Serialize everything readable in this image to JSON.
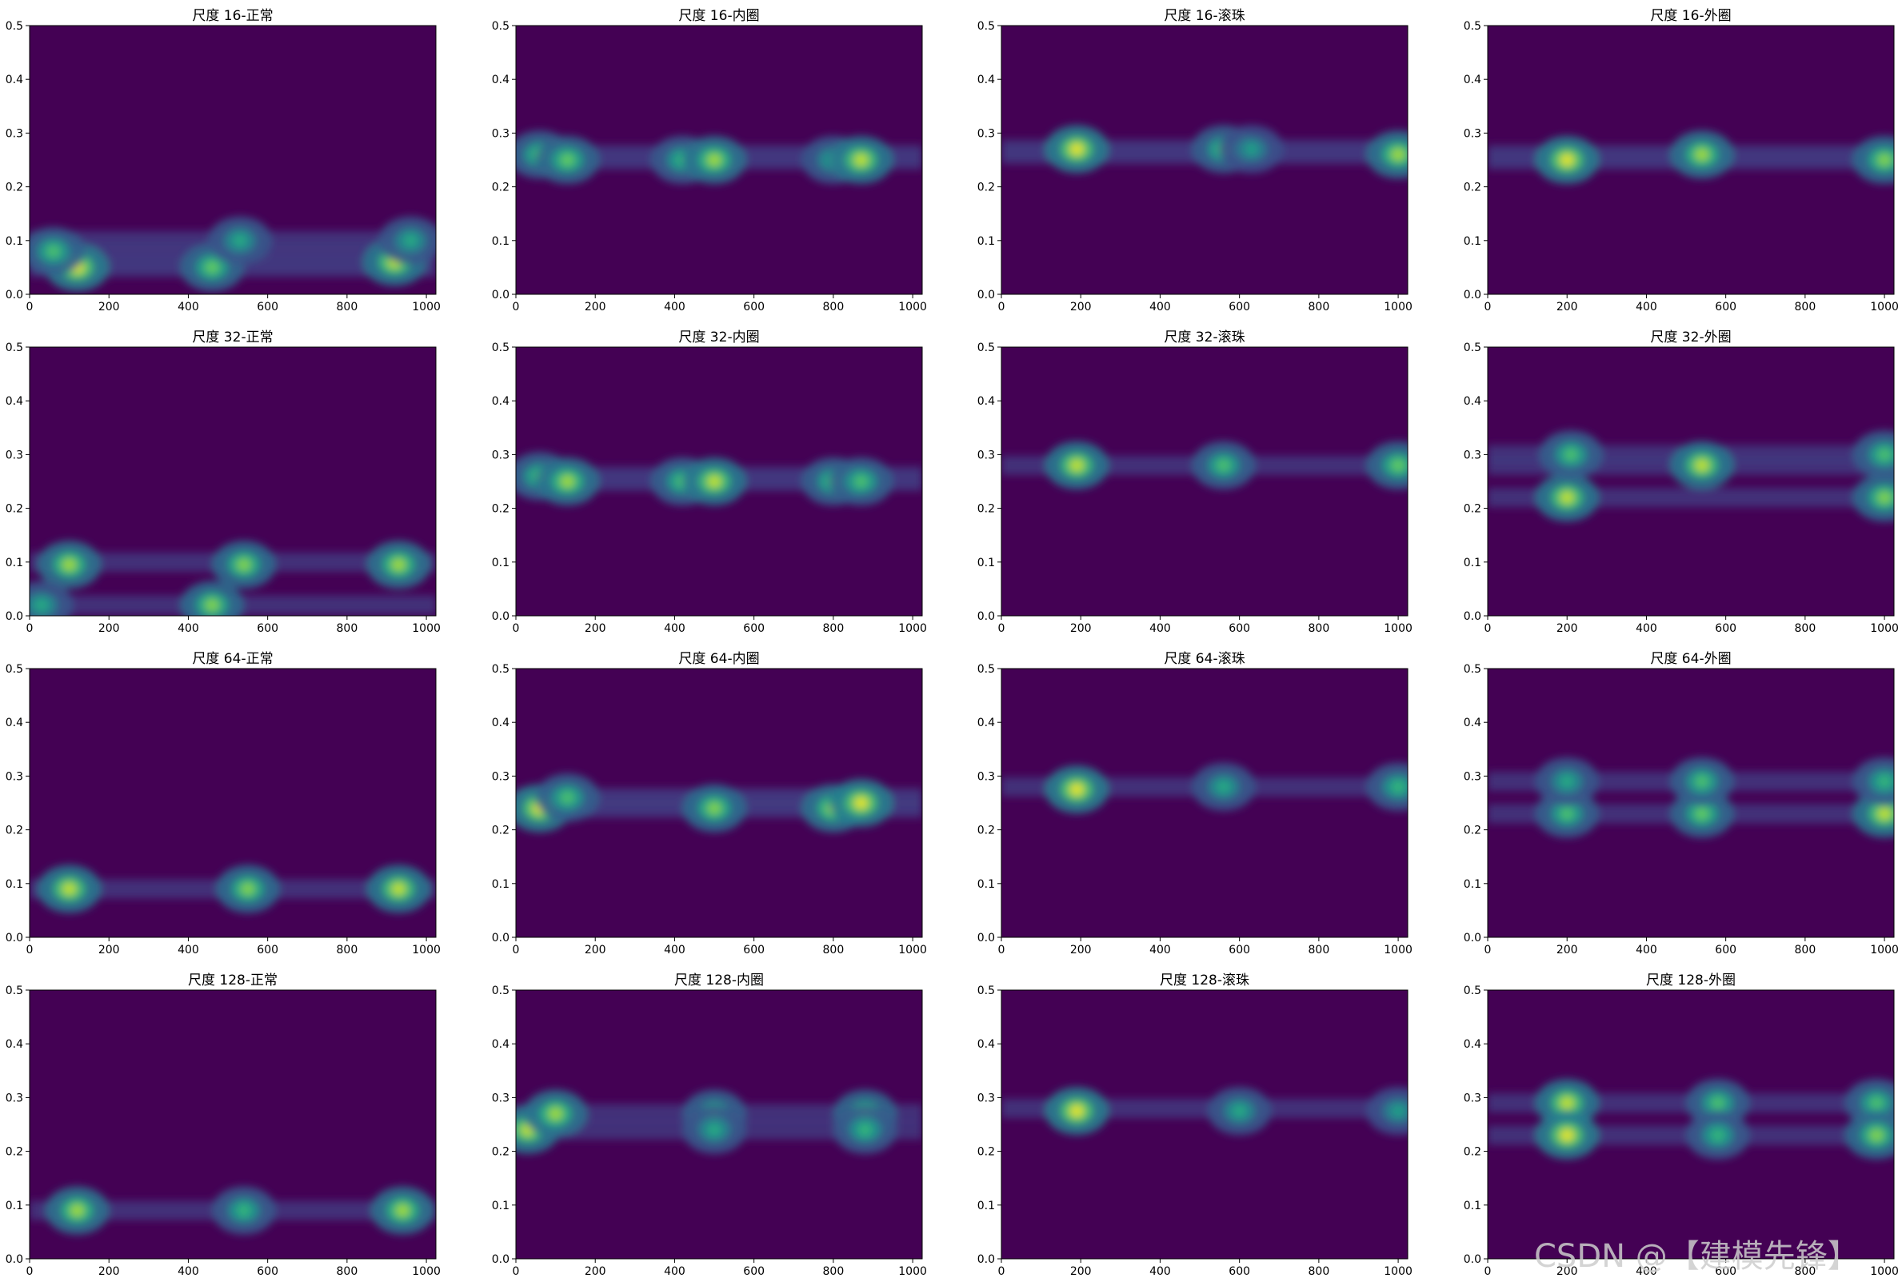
{
  "watermark": "CSDN @【建模先锋】",
  "colormap": "viridis",
  "colors": {
    "viridis_low": "#440154",
    "viridis_mid": "#21918c",
    "viridis_high": "#fde725"
  },
  "chart_data": [
    {
      "type": "heatmap",
      "title": "尺度 16-正常",
      "xlim": [
        0,
        1024
      ],
      "ylim": [
        0,
        0.5
      ],
      "xticks": [
        "0",
        "200",
        "400",
        "600",
        "800",
        "1000"
      ],
      "yticks": [
        "0.0",
        "0.1",
        "0.2",
        "0.3",
        "0.4",
        "0.5"
      ],
      "hotspots": [
        {
          "x": 120,
          "y": 0.05,
          "v": 0.95
        },
        {
          "x": 60,
          "y": 0.08,
          "v": 0.7
        },
        {
          "x": 460,
          "y": 0.05,
          "v": 0.75
        },
        {
          "x": 530,
          "y": 0.1,
          "v": 0.6
        },
        {
          "x": 920,
          "y": 0.06,
          "v": 0.9
        },
        {
          "x": 960,
          "y": 0.1,
          "v": 0.6
        }
      ]
    },
    {
      "type": "heatmap",
      "title": "尺度 16-内圈",
      "xlim": [
        0,
        1024
      ],
      "ylim": [
        0,
        0.5
      ],
      "xticks": [
        "0",
        "200",
        "400",
        "600",
        "800",
        "1000"
      ],
      "yticks": [
        "0.0",
        "0.1",
        "0.2",
        "0.3",
        "0.4",
        "0.5"
      ],
      "hotspots": [
        {
          "x": 60,
          "y": 0.26,
          "v": 0.7
        },
        {
          "x": 130,
          "y": 0.25,
          "v": 0.75
        },
        {
          "x": 420,
          "y": 0.25,
          "v": 0.65
        },
        {
          "x": 500,
          "y": 0.25,
          "v": 0.85
        },
        {
          "x": 800,
          "y": 0.25,
          "v": 0.6
        },
        {
          "x": 870,
          "y": 0.25,
          "v": 0.9
        }
      ]
    },
    {
      "type": "heatmap",
      "title": "尺度 16-滚珠",
      "xlim": [
        0,
        1024
      ],
      "ylim": [
        0,
        0.5
      ],
      "xticks": [
        "0",
        "200",
        "400",
        "600",
        "800",
        "1000"
      ],
      "yticks": [
        "0.0",
        "0.1",
        "0.2",
        "0.3",
        "0.4",
        "0.5"
      ],
      "hotspots": [
        {
          "x": 190,
          "y": 0.27,
          "v": 0.95
        },
        {
          "x": 560,
          "y": 0.27,
          "v": 0.7
        },
        {
          "x": 630,
          "y": 0.27,
          "v": 0.55
        },
        {
          "x": 1000,
          "y": 0.26,
          "v": 0.85
        }
      ]
    },
    {
      "type": "heatmap",
      "title": "尺度 16-外圈",
      "xlim": [
        0,
        1024
      ],
      "ylim": [
        0,
        0.5
      ],
      "xticks": [
        "0",
        "200",
        "400",
        "600",
        "800",
        "1000"
      ],
      "yticks": [
        "0.0",
        "0.1",
        "0.2",
        "0.3",
        "0.4",
        "0.5"
      ],
      "hotspots": [
        {
          "x": 200,
          "y": 0.25,
          "v": 0.95
        },
        {
          "x": 540,
          "y": 0.26,
          "v": 0.85
        },
        {
          "x": 1000,
          "y": 0.25,
          "v": 0.8
        }
      ]
    },
    {
      "type": "heatmap",
      "title": "尺度 32-正常",
      "xlim": [
        0,
        1024
      ],
      "ylim": [
        0,
        0.5
      ],
      "xticks": [
        "0",
        "200",
        "400",
        "600",
        "800",
        "1000"
      ],
      "yticks": [
        "0.0",
        "0.1",
        "0.2",
        "0.3",
        "0.4",
        "0.5"
      ],
      "hotspots": [
        {
          "x": 100,
          "y": 0.095,
          "v": 0.85
        },
        {
          "x": 540,
          "y": 0.095,
          "v": 0.8
        },
        {
          "x": 930,
          "y": 0.095,
          "v": 0.85
        },
        {
          "x": 460,
          "y": 0.02,
          "v": 0.8
        },
        {
          "x": 30,
          "y": 0.02,
          "v": 0.6
        }
      ]
    },
    {
      "type": "heatmap",
      "title": "尺度 32-内圈",
      "xlim": [
        0,
        1024
      ],
      "ylim": [
        0,
        0.5
      ],
      "xticks": [
        "0",
        "200",
        "400",
        "600",
        "800",
        "1000"
      ],
      "yticks": [
        "0.0",
        "0.1",
        "0.2",
        "0.3",
        "0.4",
        "0.5"
      ],
      "hotspots": [
        {
          "x": 60,
          "y": 0.26,
          "v": 0.7
        },
        {
          "x": 130,
          "y": 0.25,
          "v": 0.85
        },
        {
          "x": 420,
          "y": 0.25,
          "v": 0.7
        },
        {
          "x": 500,
          "y": 0.25,
          "v": 0.9
        },
        {
          "x": 800,
          "y": 0.25,
          "v": 0.7
        },
        {
          "x": 870,
          "y": 0.25,
          "v": 0.7
        }
      ]
    },
    {
      "type": "heatmap",
      "title": "尺度 32-滚珠",
      "xlim": [
        0,
        1024
      ],
      "ylim": [
        0,
        0.5
      ],
      "xticks": [
        "0",
        "200",
        "400",
        "600",
        "800",
        "1000"
      ],
      "yticks": [
        "0.0",
        "0.1",
        "0.2",
        "0.3",
        "0.4",
        "0.5"
      ],
      "hotspots": [
        {
          "x": 190,
          "y": 0.28,
          "v": 0.9
        },
        {
          "x": 560,
          "y": 0.28,
          "v": 0.7
        },
        {
          "x": 1000,
          "y": 0.28,
          "v": 0.75
        }
      ]
    },
    {
      "type": "heatmap",
      "title": "尺度 32-外圈",
      "xlim": [
        0,
        1024
      ],
      "ylim": [
        0,
        0.5
      ],
      "xticks": [
        "0",
        "200",
        "400",
        "600",
        "800",
        "1000"
      ],
      "yticks": [
        "0.0",
        "0.1",
        "0.2",
        "0.3",
        "0.4",
        "0.5"
      ],
      "hotspots": [
        {
          "x": 200,
          "y": 0.22,
          "v": 0.9
        },
        {
          "x": 210,
          "y": 0.3,
          "v": 0.7
        },
        {
          "x": 540,
          "y": 0.28,
          "v": 0.9
        },
        {
          "x": 1000,
          "y": 0.22,
          "v": 0.8
        },
        {
          "x": 1000,
          "y": 0.3,
          "v": 0.7
        }
      ]
    },
    {
      "type": "heatmap",
      "title": "尺度 64-正常",
      "xlim": [
        0,
        1024
      ],
      "ylim": [
        0,
        0.5
      ],
      "xticks": [
        "0",
        "200",
        "400",
        "600",
        "800",
        "1000"
      ],
      "yticks": [
        "0.0",
        "0.1",
        "0.2",
        "0.3",
        "0.4",
        "0.5"
      ],
      "hotspots": [
        {
          "x": 100,
          "y": 0.09,
          "v": 0.9
        },
        {
          "x": 550,
          "y": 0.09,
          "v": 0.8
        },
        {
          "x": 930,
          "y": 0.09,
          "v": 0.9
        }
      ]
    },
    {
      "type": "heatmap",
      "title": "尺度 64-内圈",
      "xlim": [
        0,
        1024
      ],
      "ylim": [
        0,
        0.5
      ],
      "xticks": [
        "0",
        "200",
        "400",
        "600",
        "800",
        "1000"
      ],
      "yticks": [
        "0.0",
        "0.1",
        "0.2",
        "0.3",
        "0.4",
        "0.5"
      ],
      "hotspots": [
        {
          "x": 60,
          "y": 0.24,
          "v": 0.95
        },
        {
          "x": 130,
          "y": 0.26,
          "v": 0.7
        },
        {
          "x": 500,
          "y": 0.24,
          "v": 0.8
        },
        {
          "x": 800,
          "y": 0.24,
          "v": 0.85
        },
        {
          "x": 870,
          "y": 0.25,
          "v": 0.95
        }
      ]
    },
    {
      "type": "heatmap",
      "title": "尺度 64-滚珠",
      "xlim": [
        0,
        1024
      ],
      "ylim": [
        0,
        0.5
      ],
      "xticks": [
        "0",
        "200",
        "400",
        "600",
        "800",
        "1000"
      ],
      "yticks": [
        "0.0",
        "0.1",
        "0.2",
        "0.3",
        "0.4",
        "0.5"
      ],
      "hotspots": [
        {
          "x": 190,
          "y": 0.275,
          "v": 0.95
        },
        {
          "x": 560,
          "y": 0.28,
          "v": 0.6
        },
        {
          "x": 1000,
          "y": 0.28,
          "v": 0.65
        }
      ]
    },
    {
      "type": "heatmap",
      "title": "尺度 64-外圈",
      "xlim": [
        0,
        1024
      ],
      "ylim": [
        0,
        0.5
      ],
      "xticks": [
        "0",
        "200",
        "400",
        "600",
        "800",
        "1000"
      ],
      "yticks": [
        "0.0",
        "0.1",
        "0.2",
        "0.3",
        "0.4",
        "0.5"
      ],
      "hotspots": [
        {
          "x": 200,
          "y": 0.23,
          "v": 0.7
        },
        {
          "x": 200,
          "y": 0.29,
          "v": 0.6
        },
        {
          "x": 540,
          "y": 0.23,
          "v": 0.75
        },
        {
          "x": 540,
          "y": 0.29,
          "v": 0.7
        },
        {
          "x": 1000,
          "y": 0.23,
          "v": 0.9
        },
        {
          "x": 1000,
          "y": 0.29,
          "v": 0.65
        }
      ]
    },
    {
      "type": "heatmap",
      "title": "尺度 128-正常",
      "xlim": [
        0,
        1024
      ],
      "ylim": [
        0,
        0.5
      ],
      "xticks": [
        "0",
        "200",
        "400",
        "600",
        "800",
        "1000"
      ],
      "yticks": [
        "0.0",
        "0.1",
        "0.2",
        "0.3",
        "0.4",
        "0.5"
      ],
      "hotspots": [
        {
          "x": 120,
          "y": 0.09,
          "v": 0.85
        },
        {
          "x": 540,
          "y": 0.09,
          "v": 0.65
        },
        {
          "x": 940,
          "y": 0.09,
          "v": 0.85
        }
      ]
    },
    {
      "type": "heatmap",
      "title": "尺度 128-内圈",
      "xlim": [
        0,
        1024
      ],
      "ylim": [
        0,
        0.5
      ],
      "xticks": [
        "0",
        "200",
        "400",
        "600",
        "800",
        "1000"
      ],
      "yticks": [
        "0.0",
        "0.1",
        "0.2",
        "0.3",
        "0.4",
        "0.5"
      ],
      "hotspots": [
        {
          "x": 30,
          "y": 0.24,
          "v": 0.9
        },
        {
          "x": 100,
          "y": 0.27,
          "v": 0.85
        },
        {
          "x": 500,
          "y": 0.27,
          "v": 0.7
        },
        {
          "x": 500,
          "y": 0.24,
          "v": 0.6
        },
        {
          "x": 880,
          "y": 0.27,
          "v": 0.75
        },
        {
          "x": 880,
          "y": 0.24,
          "v": 0.65
        }
      ]
    },
    {
      "type": "heatmap",
      "title": "尺度 128-滚珠",
      "xlim": [
        0,
        1024
      ],
      "ylim": [
        0,
        0.5
      ],
      "xticks": [
        "0",
        "200",
        "400",
        "600",
        "800",
        "1000"
      ],
      "yticks": [
        "0.0",
        "0.1",
        "0.2",
        "0.3",
        "0.4",
        "0.5"
      ],
      "hotspots": [
        {
          "x": 190,
          "y": 0.275,
          "v": 0.95
        },
        {
          "x": 600,
          "y": 0.275,
          "v": 0.6
        },
        {
          "x": 1000,
          "y": 0.275,
          "v": 0.55
        }
      ]
    },
    {
      "type": "heatmap",
      "title": "尺度 128-外圈",
      "xlim": [
        0,
        1024
      ],
      "ylim": [
        0,
        0.5
      ],
      "xticks": [
        "0",
        "200",
        "400",
        "600",
        "800",
        "1000"
      ],
      "yticks": [
        "0.0",
        "0.1",
        "0.2",
        "0.3",
        "0.4",
        "0.5"
      ],
      "hotspots": [
        {
          "x": 200,
          "y": 0.29,
          "v": 0.9
        },
        {
          "x": 200,
          "y": 0.23,
          "v": 0.95
        },
        {
          "x": 580,
          "y": 0.29,
          "v": 0.7
        },
        {
          "x": 580,
          "y": 0.23,
          "v": 0.65
        },
        {
          "x": 980,
          "y": 0.29,
          "v": 0.7
        },
        {
          "x": 980,
          "y": 0.23,
          "v": 0.8
        }
      ]
    }
  ]
}
